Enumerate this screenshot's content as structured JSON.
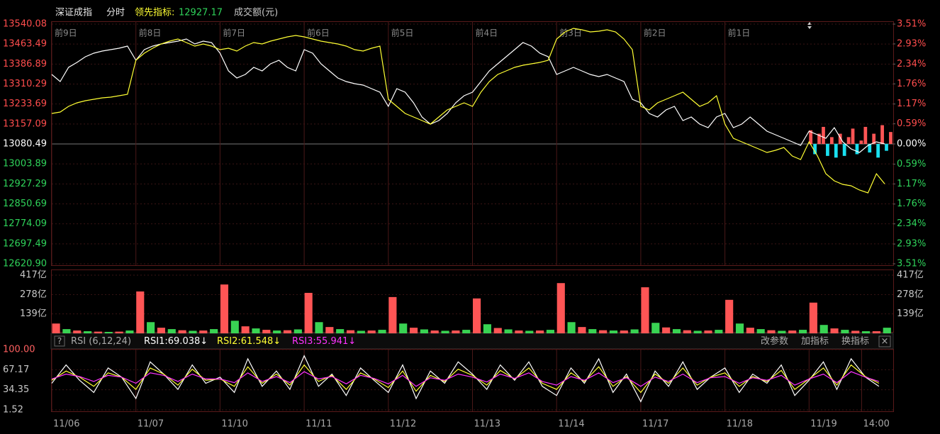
{
  "chart_data": [
    {
      "type": "line",
      "title": "深证成指",
      "subtitle": "分时",
      "indicator_label": "领先指标:",
      "indicator_value": 12927.17,
      "xlim": [
        0,
        10
      ],
      "xticks": [
        {
          "value": 0,
          "label": "前9日"
        },
        {
          "value": 1,
          "label": "前8日"
        },
        {
          "value": 2,
          "label": "前7日"
        },
        {
          "value": 3,
          "label": "前6日"
        },
        {
          "value": 4,
          "label": "前5日"
        },
        {
          "value": 5,
          "label": "前4日"
        },
        {
          "value": 6,
          "label": "前3日"
        },
        {
          "value": 7,
          "label": "前2日"
        },
        {
          "value": 8,
          "label": "前1日"
        }
      ],
      "ylim": [
        12620.9,
        13540.08
      ],
      "yticks": [
        13540.08,
        13463.49,
        13386.89,
        13310.29,
        13233.69,
        13157.09,
        13080.49,
        13003.89,
        12927.29,
        12850.69,
        12774.09,
        12697.49,
        {
          "value": 12620.9,
          "label": "12620.90"
        }
      ],
      "y2lim": [
        -3.51,
        3.51
      ],
      "y2ticks": [
        {
          "value": 3.51,
          "label": "3.51%"
        },
        {
          "value": 2.93,
          "label": "2.93%"
        },
        {
          "value": 2.34,
          "label": "2.34%"
        },
        {
          "value": 1.76,
          "label": "1.76%"
        },
        {
          "value": 1.17,
          "label": "1.17%"
        },
        {
          "value": 0.59,
          "label": "0.59%"
        },
        {
          "value": 0,
          "label": "0.00%"
        },
        {
          "value": -0.59,
          "label": "0.59%"
        },
        {
          "value": -1.17,
          "label": "1.17%"
        },
        {
          "value": -1.76,
          "label": "1.76%"
        },
        {
          "value": -2.34,
          "label": "2.34%"
        },
        {
          "value": -2.93,
          "label": "2.93%"
        },
        {
          "value": -3.51,
          "label": "3.51%"
        }
      ],
      "axis_colors": {
        "up": "#ff4d4d",
        "down": "#2fd35a",
        "flat": "#ffffff"
      },
      "grid": true,
      "x": [
        0,
        0.1,
        0.2,
        0.3,
        0.4,
        0.5,
        0.6,
        0.7,
        0.8,
        0.9,
        1,
        1.1,
        1.2,
        1.3,
        1.4,
        1.5,
        1.6,
        1.7,
        1.8,
        1.9,
        2,
        2.1,
        2.2,
        2.3,
        2.4,
        2.5,
        2.6,
        2.7,
        2.8,
        2.9,
        3,
        3.1,
        3.2,
        3.3,
        3.4,
        3.5,
        3.6,
        3.7,
        3.8,
        3.9,
        4,
        4.1,
        4.2,
        4.3,
        4.4,
        4.5,
        4.6,
        4.7,
        4.8,
        4.9,
        5,
        5.1,
        5.2,
        5.3,
        5.4,
        5.5,
        5.6,
        5.7,
        5.8,
        5.9,
        6,
        6.1,
        6.2,
        6.3,
        6.4,
        6.5,
        6.6,
        6.7,
        6.8,
        6.9,
        7,
        7.1,
        7.2,
        7.3,
        7.4,
        7.5,
        7.6,
        7.7,
        7.8,
        7.9,
        8,
        8.1,
        8.2,
        8.3,
        8.4,
        8.5,
        8.6,
        8.7,
        8.8,
        8.9,
        9,
        9.1,
        9.2,
        9.3,
        9.4,
        9.5,
        9.6,
        9.7,
        9.8,
        9.9
      ],
      "series": [
        {
          "color": "#ffffff",
          "values": [
            13347.0,
            13319.8,
            13374.2,
            13393.2,
            13415.0,
            13428.6,
            13436.7,
            13442.2,
            13447.6,
            13455.8,
            13401.4,
            13442.2,
            13455.8,
            13464.0,
            13469.4,
            13474.8,
            13483.0,
            13464.0,
            13474.8,
            13469.4,
            13428.6,
            13360.6,
            13333.4,
            13347.0,
            13374.2,
            13360.6,
            13387.8,
            13401.4,
            13374.2,
            13360.6,
            13442.2,
            13428.6,
            13387.8,
            13360.6,
            13333.4,
            13319.8,
            13311.7,
            13306.2,
            13292.6,
            13279.0,
            13224.6,
            13292.6,
            13279.0,
            13238.2,
            13183.8,
            13156.6,
            13170.2,
            13197.4,
            13238.2,
            13265.4,
            13279.0,
            13319.8,
            13360.6,
            13387.8,
            13415.0,
            13442.2,
            13469.4,
            13455.8,
            13428.6,
            13415.0,
            13347.0,
            13360.6,
            13374.2,
            13360.6,
            13347.0,
            13338.8,
            13347.0,
            13333.4,
            13319.8,
            13251.8,
            13238.2,
            13197.4,
            13183.8,
            13211.0,
            13224.6,
            13170.2,
            13183.8,
            13156.6,
            13143.0,
            13183.8,
            13197.4,
            13143.0,
            13156.6,
            13183.8,
            13156.6,
            13129.4,
            13115.8,
            13102.2,
            13088.6,
            13075.0,
            13129.4,
            13115.8,
            13102.2,
            13143.0,
            13088.6,
            13061.4,
            13047.9,
            13075.0,
            13088.6,
            13080.5
          ]
        },
        {
          "color": "#ffff33",
          "values": [
            13197.4,
            13202.9,
            13224.6,
            13238.2,
            13246.4,
            13251.8,
            13257.3,
            13260.0,
            13265.4,
            13270.9,
            13401.4,
            13428.6,
            13447.6,
            13464.0,
            13474.8,
            13483.0,
            13469.4,
            13455.8,
            13464.0,
            13455.8,
            13442.2,
            13447.6,
            13436.7,
            13455.8,
            13469.4,
            13464.0,
            13474.8,
            13483.0,
            13491.1,
            13496.6,
            13491.1,
            13483.0,
            13474.8,
            13469.4,
            13464.0,
            13455.8,
            13442.2,
            13436.7,
            13447.6,
            13455.8,
            13251.8,
            13224.6,
            13197.4,
            13183.8,
            13170.2,
            13156.6,
            13183.8,
            13211.0,
            13224.6,
            13238.2,
            13224.6,
            13279.0,
            13319.8,
            13347.0,
            13360.6,
            13374.2,
            13382.4,
            13387.8,
            13393.2,
            13401.4,
            13483.0,
            13510.2,
            13523.8,
            13518.3,
            13510.2,
            13512.9,
            13518.3,
            13510.2,
            13483.0,
            13442.2,
            13224.6,
            13211.0,
            13238.2,
            13251.8,
            13265.4,
            13279.0,
            13251.8,
            13224.6,
            13238.2,
            13265.4,
            13156.6,
            13102.2,
            13088.6,
            13075.0,
            13061.4,
            13047.9,
            13056.0,
            13066.9,
            13034.3,
            13020.7,
            13088.6,
            13034.3,
            12966.3,
            12939.1,
            12925.5,
            12920.1,
            12903.7,
            12892.9,
            12966.3,
            12927.17
          ]
        }
      ],
      "bars": {
        "axis": "y2",
        "colors": [
          "#ff5555",
          "#19e0f0"
        ],
        "x": [
          9,
          9.05,
          9.1,
          9.15,
          9.2,
          9.25,
          9.3,
          9.35,
          9.4,
          9.45,
          9.5,
          9.55,
          9.6,
          9.65,
          9.7,
          9.75,
          9.8,
          9.85,
          9.9,
          9.95
        ],
        "values": [
          0.4,
          -0.3,
          0.3,
          0.5,
          -0.35,
          0.2,
          -0.4,
          0.3,
          -0.35,
          0.2,
          0.45,
          -0.3,
          0.1,
          0.5,
          -0.25,
          0.3,
          -0.4,
          0.55,
          -0.2,
          0.35
        ]
      }
    },
    {
      "type": "bar",
      "title": "成交额(元)",
      "xlim": [
        0,
        10
      ],
      "ylim": [
        0,
        417
      ],
      "yticks": [
        {
          "value": 417,
          "label": "417亿"
        },
        {
          "value": 278,
          "label": "278亿"
        },
        {
          "value": 139,
          "label": "139亿"
        }
      ],
      "colors": [
        "#ff5555",
        "#39d353"
      ],
      "x": [
        0,
        0.125,
        0.25,
        0.375,
        0.5,
        0.625,
        0.75,
        0.875,
        1,
        1.125,
        1.25,
        1.375,
        1.5,
        1.625,
        1.75,
        1.875,
        2,
        2.125,
        2.25,
        2.375,
        2.5,
        2.625,
        2.75,
        2.875,
        3,
        3.125,
        3.25,
        3.375,
        3.5,
        3.625,
        3.75,
        3.875,
        4,
        4.125,
        4.25,
        4.375,
        4.5,
        4.625,
        4.75,
        4.875,
        5,
        5.125,
        5.25,
        5.375,
        5.5,
        5.625,
        5.75,
        5.875,
        6,
        6.125,
        6.25,
        6.375,
        6.5,
        6.625,
        6.75,
        6.875,
        7,
        7.125,
        7.25,
        7.375,
        7.5,
        7.625,
        7.75,
        7.875,
        8,
        8.125,
        8.25,
        8.375,
        8.5,
        8.625,
        8.75,
        8.875,
        9,
        9.125,
        9.25,
        9.375,
        9.5,
        9.625,
        9.75,
        9.875
      ],
      "values": [
        70,
        30,
        20,
        15,
        12,
        10,
        12,
        20,
        300,
        80,
        40,
        30,
        22,
        18,
        20,
        30,
        350,
        90,
        50,
        35,
        25,
        20,
        22,
        28,
        290,
        80,
        45,
        30,
        22,
        18,
        20,
        25,
        260,
        70,
        40,
        28,
        20,
        18,
        20,
        25,
        250,
        65,
        38,
        28,
        20,
        18,
        20,
        25,
        360,
        80,
        45,
        30,
        22,
        20,
        20,
        28,
        330,
        75,
        42,
        30,
        22,
        18,
        20,
        25,
        240,
        70,
        40,
        30,
        22,
        18,
        20,
        25,
        220,
        60,
        35,
        25,
        18,
        15,
        15,
        40
      ]
    },
    {
      "type": "line",
      "title": "RSI (6,12,24)",
      "help": "?",
      "controls": [
        "改参数",
        "加指标",
        "换指标"
      ],
      "close": "×",
      "xlim": [
        0,
        10
      ],
      "xticks": [
        {
          "value": 0,
          "label": "11/06"
        },
        {
          "value": 1,
          "label": "11/07"
        },
        {
          "value": 2,
          "label": "11/10"
        },
        {
          "value": 3,
          "label": "11/11"
        },
        {
          "value": 4,
          "label": "11/12"
        },
        {
          "value": 5,
          "label": "11/13"
        },
        {
          "value": 6,
          "label": "11/14"
        },
        {
          "value": 7,
          "label": "11/17"
        },
        {
          "value": 8,
          "label": "11/18"
        },
        {
          "value": 9,
          "label": "11/19"
        },
        {
          "value": 9.625,
          "label": "14:00"
        }
      ],
      "ylim": [
        1.52,
        100
      ],
      "yticks": [
        {
          "value": 100,
          "label": "100.00"
        },
        67.17,
        34.35,
        1.52
      ],
      "x": [
        0,
        0.17,
        0.33,
        0.5,
        0.67,
        0.83,
        1,
        1.17,
        1.33,
        1.5,
        1.67,
        1.83,
        2,
        2.17,
        2.33,
        2.5,
        2.67,
        2.83,
        3,
        3.17,
        3.33,
        3.5,
        3.67,
        3.83,
        4,
        4.17,
        4.33,
        4.5,
        4.67,
        4.83,
        5,
        5.17,
        5.33,
        5.5,
        5.67,
        5.83,
        6,
        6.17,
        6.33,
        6.5,
        6.67,
        6.83,
        7,
        7.17,
        7.33,
        7.5,
        7.67,
        7.83,
        8,
        8.17,
        8.33,
        8.5,
        8.67,
        8.83,
        9,
        9.17,
        9.33,
        9.5,
        9.67,
        9.83
      ],
      "series": [
        {
          "name": "RSI1:69.038↓",
          "color": "#ffffff",
          "values": [
            45,
            75,
            50,
            30,
            70,
            55,
            20,
            80,
            60,
            35,
            75,
            45,
            55,
            30,
            85,
            40,
            65,
            35,
            90,
            40,
            60,
            25,
            70,
            50,
            30,
            75,
            20,
            65,
            45,
            80,
            60,
            35,
            75,
            50,
            80,
            40,
            25,
            70,
            45,
            85,
            30,
            60,
            15,
            65,
            40,
            80,
            35,
            55,
            70,
            30,
            60,
            45,
            75,
            25,
            50,
            80,
            35,
            85,
            55,
            40
          ]
        },
        {
          "name": "RSI2:61.548↓",
          "color": "#ffff33",
          "values": [
            50,
            65,
            55,
            40,
            62,
            55,
            35,
            70,
            60,
            42,
            68,
            50,
            52,
            40,
            72,
            45,
            60,
            42,
            75,
            48,
            58,
            35,
            62,
            52,
            38,
            65,
            32,
            58,
            48,
            68,
            58,
            42,
            66,
            52,
            70,
            45,
            35,
            62,
            48,
            72,
            40,
            56,
            30,
            60,
            45,
            70,
            42,
            55,
            62,
            40,
            56,
            48,
            66,
            35,
            52,
            70,
            42,
            75,
            56,
            45
          ]
        },
        {
          "name": "RSI3:55.941↓",
          "color": "#ff33ff",
          "values": [
            52,
            60,
            56,
            48,
            58,
            55,
            45,
            62,
            58,
            48,
            60,
            52,
            52,
            46,
            62,
            48,
            56,
            46,
            64,
            52,
            56,
            44,
            58,
            53,
            44,
            58,
            40,
            54,
            50,
            60,
            55,
            47,
            60,
            53,
            62,
            48,
            42,
            56,
            50,
            62,
            46,
            54,
            40,
            55,
            48,
            60,
            46,
            54,
            56,
            45,
            54,
            50,
            58,
            42,
            52,
            60,
            46,
            64,
            55,
            48
          ]
        }
      ]
    }
  ]
}
